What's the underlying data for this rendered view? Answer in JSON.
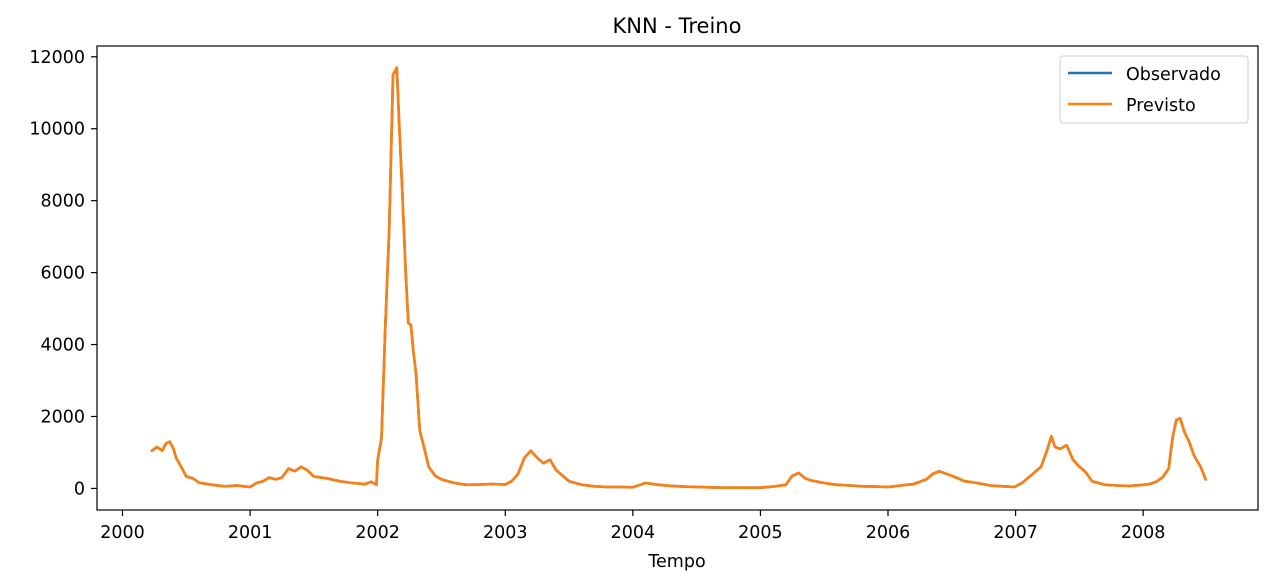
{
  "chart_data": {
    "type": "line",
    "title": "KNN - Treino",
    "xlabel": "Tempo",
    "ylabel": "",
    "xlim": [
      1999.8,
      2008.9
    ],
    "ylim": [
      -600,
      12300
    ],
    "x_ticks": [
      2000,
      2001,
      2002,
      2003,
      2004,
      2005,
      2006,
      2007,
      2008
    ],
    "x_tick_labels": [
      "2000",
      "2001",
      "2002",
      "2003",
      "2004",
      "2005",
      "2006",
      "2007",
      "2008"
    ],
    "y_ticks": [
      0,
      2000,
      4000,
      6000,
      8000,
      10000,
      12000
    ],
    "y_tick_labels": [
      "0",
      "2000",
      "4000",
      "6000",
      "8000",
      "10000",
      "12000"
    ],
    "grid": false,
    "legend_position": "top-right",
    "x": [
      2000.23,
      2000.27,
      2000.31,
      2000.34,
      2000.37,
      2000.4,
      2000.42,
      2000.46,
      2000.5,
      2000.55,
      2000.6,
      2000.7,
      2000.8,
      2000.9,
      2000.95,
      2001.0,
      2001.05,
      2001.1,
      2001.15,
      2001.2,
      2001.25,
      2001.3,
      2001.35,
      2001.4,
      2001.45,
      2001.5,
      2001.6,
      2001.7,
      2001.8,
      2001.9,
      2001.95,
      2001.99,
      2002.0,
      2002.03,
      2002.06,
      2002.09,
      2002.12,
      2002.15,
      2002.17,
      2002.19,
      2002.22,
      2002.24,
      2002.26,
      2002.28,
      2002.3,
      2002.33,
      2002.36,
      2002.4,
      2002.45,
      2002.5,
      2002.6,
      2002.7,
      2002.8,
      2002.9,
      2003.0,
      2003.05,
      2003.1,
      2003.15,
      2003.2,
      2003.25,
      2003.3,
      2003.35,
      2003.4,
      2003.45,
      2003.5,
      2003.6,
      2003.7,
      2003.8,
      2003.9,
      2004.0,
      2004.1,
      2004.2,
      2004.3,
      2004.4,
      2004.5,
      2004.6,
      2004.7,
      2004.8,
      2004.9,
      2005.0,
      2005.1,
      2005.2,
      2005.25,
      2005.3,
      2005.35,
      2005.4,
      2005.5,
      2005.6,
      2005.7,
      2005.8,
      2005.9,
      2006.0,
      2006.1,
      2006.2,
      2006.3,
      2006.35,
      2006.4,
      2006.5,
      2006.6,
      2006.7,
      2006.8,
      2006.9,
      2006.99,
      2007.05,
      2007.15,
      2007.2,
      2007.25,
      2007.28,
      2007.31,
      2007.35,
      2007.4,
      2007.45,
      2007.5,
      2007.55,
      2007.6,
      2007.7,
      2007.8,
      2007.9,
      2008.0,
      2008.05,
      2008.1,
      2008.15,
      2008.2,
      2008.23,
      2008.26,
      2008.29,
      2008.32,
      2008.36,
      2008.4,
      2008.45,
      2008.49
    ],
    "series": [
      {
        "name": "Observado",
        "color": "#1f77b4",
        "values": [
          1050,
          1150,
          1050,
          1250,
          1300,
          1100,
          850,
          600,
          330,
          280,
          160,
          100,
          60,
          80,
          60,
          40,
          150,
          200,
          300,
          250,
          300,
          550,
          480,
          600,
          500,
          330,
          280,
          200,
          150,
          120,
          180,
          100,
          800,
          1400,
          4500,
          7200,
          11500,
          11700,
          10000,
          8500,
          6000,
          4600,
          4550,
          3800,
          3200,
          1600,
          1200,
          600,
          350,
          250,
          150,
          100,
          110,
          120,
          110,
          200,
          400,
          850,
          1050,
          850,
          700,
          800,
          500,
          350,
          200,
          100,
          60,
          40,
          40,
          30,
          150,
          100,
          70,
          50,
          40,
          30,
          20,
          20,
          20,
          20,
          50,
          100,
          350,
          430,
          280,
          220,
          150,
          100,
          80,
          60,
          50,
          40,
          80,
          120,
          250,
          400,
          480,
          350,
          200,
          150,
          80,
          60,
          40,
          150,
          450,
          600,
          1100,
          1450,
          1150,
          1100,
          1200,
          800,
          600,
          450,
          200,
          100,
          80,
          70,
          100,
          120,
          180,
          300,
          550,
          1400,
          1900,
          1950,
          1600,
          1300,
          900,
          600,
          250
        ]
      },
      {
        "name": "Previsto",
        "color": "#ff7f0e",
        "values": [
          1050,
          1150,
          1050,
          1250,
          1300,
          1100,
          850,
          600,
          330,
          280,
          160,
          100,
          60,
          80,
          60,
          40,
          150,
          200,
          300,
          250,
          300,
          550,
          480,
          600,
          500,
          330,
          280,
          200,
          150,
          120,
          180,
          100,
          800,
          1400,
          4500,
          7200,
          11500,
          11700,
          10000,
          8500,
          6000,
          4600,
          4550,
          3800,
          3200,
          1600,
          1200,
          600,
          350,
          250,
          150,
          100,
          110,
          120,
          110,
          200,
          400,
          850,
          1050,
          850,
          700,
          800,
          500,
          350,
          200,
          100,
          60,
          40,
          40,
          30,
          150,
          100,
          70,
          50,
          40,
          30,
          20,
          20,
          20,
          20,
          50,
          100,
          350,
          430,
          280,
          220,
          150,
          100,
          80,
          60,
          50,
          40,
          80,
          120,
          250,
          400,
          480,
          350,
          200,
          150,
          80,
          60,
          40,
          150,
          450,
          600,
          1100,
          1450,
          1150,
          1100,
          1200,
          800,
          600,
          450,
          200,
          100,
          80,
          70,
          100,
          120,
          180,
          300,
          550,
          1400,
          1900,
          1950,
          1600,
          1300,
          900,
          600,
          250
        ]
      }
    ]
  }
}
